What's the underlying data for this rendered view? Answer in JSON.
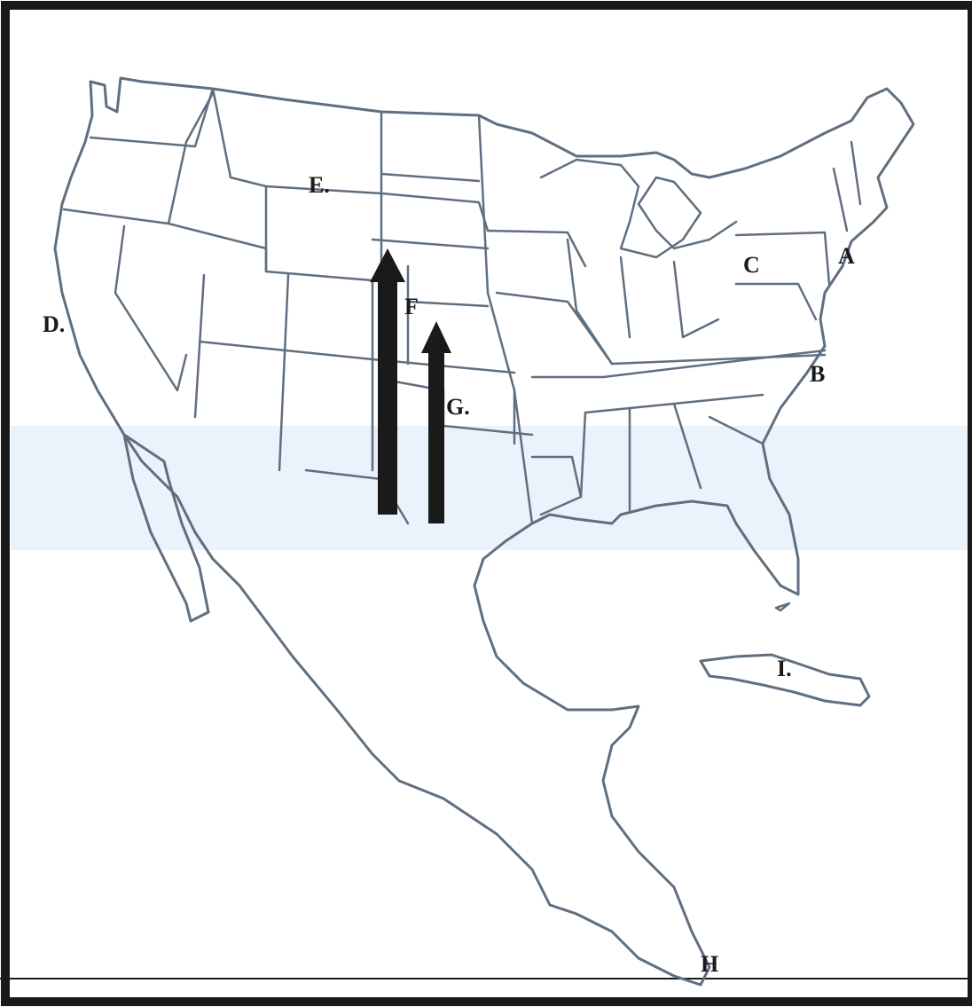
{
  "map": {
    "labels": {
      "a": "A",
      "b": "B",
      "c": "C",
      "d": "D.",
      "e": "E.",
      "f": "F",
      "g": "G.",
      "h": "H",
      "i": "I."
    },
    "colors": {
      "border": "#1a1a1a",
      "outline": "#5f6f80",
      "arrow": "#1a1a1a",
      "band": "#eaf3fb"
    }
  }
}
